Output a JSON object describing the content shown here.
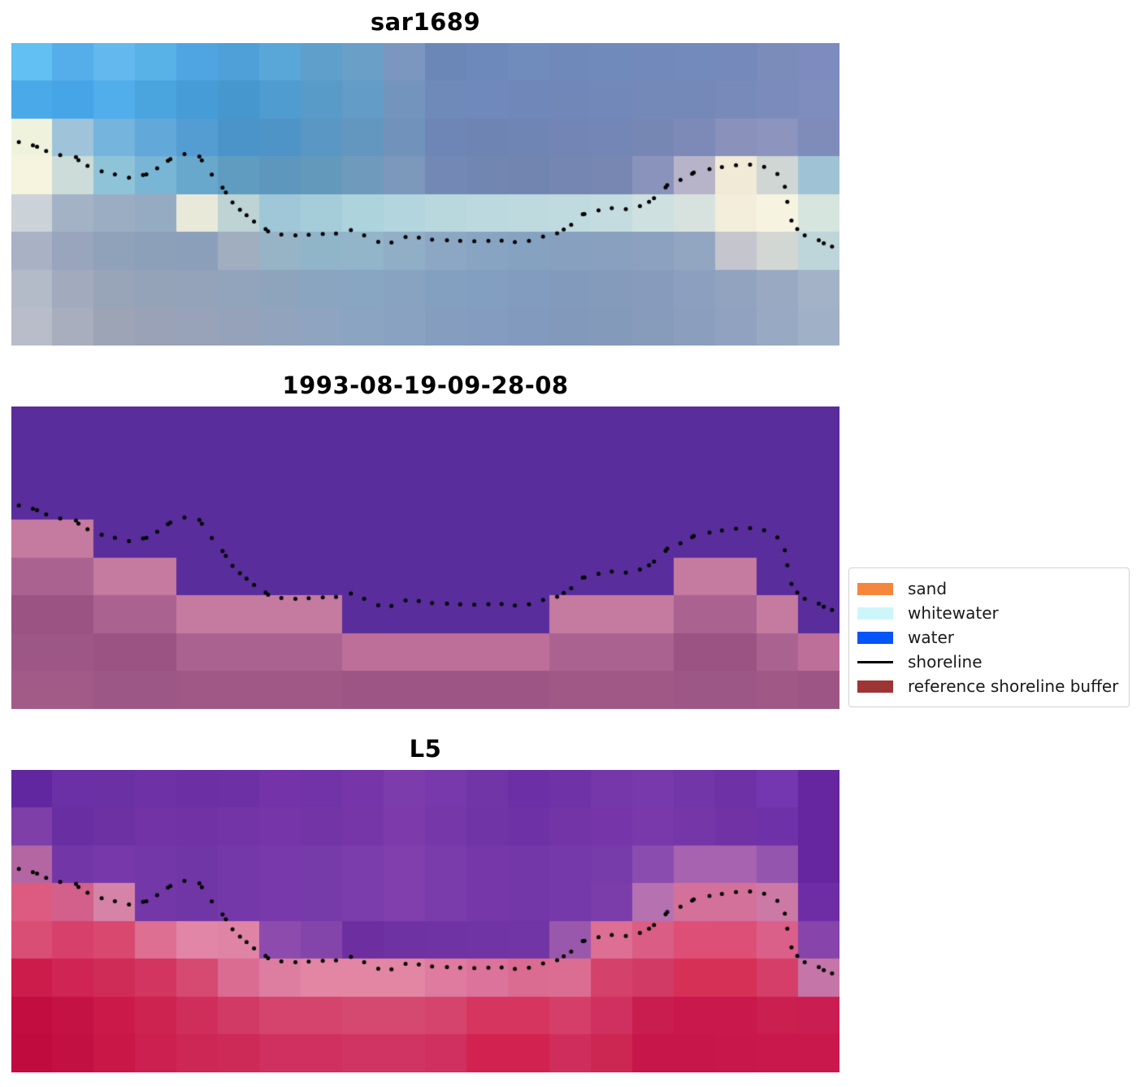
{
  "chart_data": {
    "type": "heatmap",
    "description": "Three stacked satellite image panels (pixelated imagery) sharing a common detected shoreline drawn as dotted black points; legend of classification colors at right.",
    "grid_cols": 20,
    "grid_rows": 8,
    "panels": [
      {
        "title": "sar1689",
        "grid": [
          [
            "#62c0f2",
            "#55aeea",
            "#63b8ee",
            "#58b1e7",
            "#4fa5e1",
            "#4f9fd8",
            "#58a7d8",
            "#5f9fcc",
            "#6a9fc8",
            "#7b97c0",
            "#6b87b8",
            "#6d89bb",
            "#6f8cbd",
            "#7089bb",
            "#718abc",
            "#7289bb",
            "#738abc",
            "#7589ba",
            "#7b8cbb",
            "#7d8bbf"
          ],
          [
            "#4aa9e8",
            "#45a5e6",
            "#51aeeb",
            "#4aa4de",
            "#459cd7",
            "#4697cd",
            "#4f9cd1",
            "#589bc9",
            "#639cc6",
            "#7395bd",
            "#6f8ab9",
            "#7089bc",
            "#6f87b9",
            "#7187b8",
            "#7288b9",
            "#7589b9",
            "#7589b8",
            "#778aba",
            "#7b8cbc",
            "#7e8cbe"
          ],
          [
            "#eff3dd",
            "#9fc4da",
            "#74b4dd",
            "#62a8d8",
            "#549dd2",
            "#4b94c9",
            "#4f94c7",
            "#5a97c4",
            "#6497bf",
            "#7193bb",
            "#6d86b5",
            "#6e85b4",
            "#6f85b3",
            "#7285b4",
            "#7486b5",
            "#7787b4",
            "#7d8ab7",
            "#8a92bb",
            "#8d94bd",
            "#7f8cba"
          ],
          [
            "#f6f4de",
            "#ccdcd8",
            "#8fc3d8",
            "#79b5d4",
            "#68a8cc",
            "#5f9cc0",
            "#5d97bd",
            "#639abc",
            "#6f9abb",
            "#7c98bb",
            "#7388b4",
            "#7286b2",
            "#7285b1",
            "#7586b2",
            "#7787b2",
            "#8a93bb",
            "#b7b4c9",
            "#f1ead6",
            "#cfd6d4",
            "#9fc3d4"
          ],
          [
            "#ccd3d8",
            "#a4b2c6",
            "#9aadc3",
            "#95abc2",
            "#e9e9da",
            "#bdd3d4",
            "#9fc7d8",
            "#a5cdd9",
            "#add3dc",
            "#b2d5de",
            "#b8d8de",
            "#bcd9df",
            "#bedadf",
            "#c0dbe0",
            "#c4dce0",
            "#cfe0e0",
            "#d7e2de",
            "#f3eedc",
            "#f6f3e0",
            "#d6e5de"
          ],
          [
            "#a9b2c4",
            "#98a5bc",
            "#8fa2ba",
            "#8ca0b9",
            "#8b9fba",
            "#a0aec0",
            "#96b4c6",
            "#90b4c8",
            "#92b5ca",
            "#90aec6",
            "#8ba7c3",
            "#87a4c2",
            "#86a2c1",
            "#87a0bf",
            "#89a0bf",
            "#8ca1bf",
            "#92a5c1",
            "#c5c6cd",
            "#d3d7d3",
            "#bed6da"
          ],
          [
            "#b3bac8",
            "#a2abbd",
            "#98a4b8",
            "#95a3b8",
            "#94a3ba",
            "#92a3bc",
            "#8ea4bd",
            "#8aa5c0",
            "#88a5c2",
            "#87a3c1",
            "#84a0c0",
            "#829ec0",
            "#819cbe",
            "#829bbd",
            "#849bbc",
            "#879cbc",
            "#8c9fbe",
            "#92a3c0",
            "#9aa9c2",
            "#a3b2c6"
          ],
          [
            "#b8bdc9",
            "#a8aebd",
            "#9da4b6",
            "#99a2b6",
            "#98a2b8",
            "#96a2ba",
            "#92a3bd",
            "#8ea4c0",
            "#8ba4c2",
            "#89a2c1",
            "#859ec0",
            "#839cbf",
            "#829abd",
            "#8299bc",
            "#849abb",
            "#879bbb",
            "#8b9ebd",
            "#90a2bf",
            "#98a9c3",
            "#a0b0c7"
          ]
        ]
      },
      {
        "title": "1993-08-19-09-28-08",
        "grid": [
          [
            "#5a2d9c",
            "#5a2d9c",
            "#5a2d9c",
            "#5a2d9c",
            "#5a2d9c",
            "#5a2d9c",
            "#5a2d9c",
            "#5a2d9c",
            "#5a2d9c",
            "#5a2d9c",
            "#5a2d9c",
            "#5a2d9c",
            "#5a2d9c",
            "#5a2d9c",
            "#5a2d9c",
            "#5a2d9c",
            "#5a2d9c",
            "#5a2d9c",
            "#5a2d9c",
            "#5a2d9c"
          ],
          [
            "#5a2d9c",
            "#5a2d9c",
            "#5a2d9c",
            "#5a2d9c",
            "#5a2d9c",
            "#5a2d9c",
            "#5a2d9c",
            "#5a2d9c",
            "#5a2d9c",
            "#5a2d9c",
            "#5a2d9c",
            "#5a2d9c",
            "#5a2d9c",
            "#5a2d9c",
            "#5a2d9c",
            "#5a2d9c",
            "#5a2d9c",
            "#5a2d9c",
            "#5a2d9c",
            "#5a2d9c"
          ],
          [
            "#5a2d9c",
            "#5a2d9c",
            "#5a2d9c",
            "#5a2d9c",
            "#5a2d9c",
            "#5a2d9c",
            "#5a2d9c",
            "#5a2d9c",
            "#5a2d9c",
            "#5a2d9c",
            "#5a2d9c",
            "#5a2d9c",
            "#5a2d9c",
            "#5a2d9c",
            "#5a2d9c",
            "#5a2d9c",
            "#5a2d9c",
            "#5a2d9c",
            "#5a2d9c",
            "#5a2d9c"
          ],
          [
            "#c57a9f",
            "#c57a9f",
            "#5a2d9c",
            "#5a2d9c",
            "#5a2d9c",
            "#5a2d9c",
            "#5a2d9c",
            "#5a2d9c",
            "#5a2d9c",
            "#5a2d9c",
            "#5a2d9c",
            "#5a2d9c",
            "#5a2d9c",
            "#5a2d9c",
            "#5a2d9c",
            "#5a2d9c",
            "#5a2d9c",
            "#5a2d9c",
            "#5a2d9c",
            "#5a2d9c"
          ],
          [
            "#aa6390",
            "#aa6390",
            "#c57a9f",
            "#c57a9f",
            "#5a2d9c",
            "#5a2d9c",
            "#5a2d9c",
            "#5a2d9c",
            "#5a2d9c",
            "#5a2d9c",
            "#5a2d9c",
            "#5a2d9c",
            "#5a2d9c",
            "#5a2d9c",
            "#5a2d9c",
            "#5a2d9c",
            "#c57a9f",
            "#c57a9f",
            "#5a2d9c",
            "#5a2d9c"
          ],
          [
            "#9a5383",
            "#9a5383",
            "#aa6390",
            "#aa6390",
            "#c57a9f",
            "#c57a9f",
            "#c57a9f",
            "#c57a9f",
            "#5a2d9c",
            "#5a2d9c",
            "#5a2d9c",
            "#5a2d9c",
            "#5a2d9c",
            "#c57a9f",
            "#c57a9f",
            "#c57a9f",
            "#aa6390",
            "#aa6390",
            "#c57a9f",
            "#5a2d9c"
          ],
          [
            "#9d5786",
            "#9d5786",
            "#9a5383",
            "#9a5383",
            "#aa6390",
            "#aa6390",
            "#aa6390",
            "#aa6390",
            "#bd6f99",
            "#bd6f99",
            "#bd6f99",
            "#bd6f99",
            "#bd6f99",
            "#aa6390",
            "#aa6390",
            "#aa6390",
            "#9a5383",
            "#9a5383",
            "#aa6390",
            "#bd6f99"
          ],
          [
            "#a25a87",
            "#a25a87",
            "#9d5786",
            "#9d5786",
            "#a05886",
            "#a05886",
            "#a05886",
            "#a05886",
            "#9d5585",
            "#9d5585",
            "#9d5585",
            "#9d5585",
            "#9d5585",
            "#a05886",
            "#a05886",
            "#a05886",
            "#9d5786",
            "#9d5786",
            "#a05886",
            "#9d5585"
          ]
        ]
      },
      {
        "title": "L5",
        "grid": [
          [
            "#6127a0",
            "#6b2fa6",
            "#6c30a5",
            "#6e32a6",
            "#6c2fa4",
            "#6e31a5",
            "#7433a8",
            "#7133a7",
            "#7636a9",
            "#7d3cac",
            "#7739ab",
            "#7135a8",
            "#6c2fa5",
            "#7033a7",
            "#7537aa",
            "#7839ac",
            "#7336a9",
            "#6e31a6",
            "#7437af",
            "#6526a0"
          ],
          [
            "#7e3fa9",
            "#6a2ea3",
            "#6e31a4",
            "#7133a6",
            "#7032a5",
            "#7234a6",
            "#7635a8",
            "#7334a6",
            "#7736a8",
            "#7c3aab",
            "#7637a9",
            "#7134a7",
            "#6f32a6",
            "#7234a7",
            "#7636a9",
            "#7a39ab",
            "#7536a8",
            "#7132a6",
            "#6f31a7",
            "#6526a0"
          ],
          [
            "#b466a2",
            "#7336a7",
            "#7739a9",
            "#7437a8",
            "#7136a6",
            "#7438a8",
            "#7839aa",
            "#773aa9",
            "#7c3dac",
            "#803fad",
            "#7b3cab",
            "#7638a9",
            "#7337a8",
            "#7539a9",
            "#783baa",
            "#8b4cb0",
            "#a763af",
            "#a763af",
            "#9355ad",
            "#6526a0"
          ],
          [
            "#dd5b80",
            "#d2608a",
            "#d584a8",
            "#7437a8",
            "#7136a6",
            "#7438a8",
            "#7839aa",
            "#773aa9",
            "#7c3dac",
            "#803fad",
            "#7b3cab",
            "#7638a9",
            "#7337a8",
            "#7539a9",
            "#7b3da9",
            "#b671b1",
            "#d3719a",
            "#d4719b",
            "#cc7aa5",
            "#6e2da4"
          ],
          [
            "#d94e74",
            "#d6406a",
            "#d8486f",
            "#dd6f93",
            "#e186a6",
            "#e084a5",
            "#8d4bae",
            "#8445ab",
            "#6d2fa0",
            "#6f32a2",
            "#7033a3",
            "#7134a4",
            "#7235a5",
            "#9a58ac",
            "#dc6f93",
            "#da5d85",
            "#dd4f76",
            "#dd4f76",
            "#db6089",
            "#8745ac"
          ],
          [
            "#cb1c4c",
            "#cf2454",
            "#d02c58",
            "#d23560",
            "#d64a72",
            "#da6b91",
            "#dd7ea1",
            "#e286a4",
            "#e286a4",
            "#e286a4",
            "#de7b9e",
            "#dc739a",
            "#da6b91",
            "#db6d92",
            "#d4426c",
            "#d23a66",
            "#d63056",
            "#d63056",
            "#d43e68",
            "#c575a8"
          ],
          [
            "#c20d40",
            "#c51245",
            "#cb1a4a",
            "#cd2351",
            "#d02e5a",
            "#d23a66",
            "#d4446c",
            "#d4446c",
            "#d54970",
            "#d54970",
            "#d4446c",
            "#d63560",
            "#d63560",
            "#d43e68",
            "#cf3060",
            "#ca1d4f",
            "#c9184c",
            "#c9184c",
            "#cb1f50",
            "#ca1d51"
          ],
          [
            "#c00b3e",
            "#c31043",
            "#c91747",
            "#cb2050",
            "#cd2855",
            "#cd2a58",
            "#cf3060",
            "#cf3060",
            "#d03463",
            "#d03463",
            "#cf3060",
            "#d12250",
            "#d12250",
            "#cf2e5c",
            "#cc2753",
            "#c6164a",
            "#c6164a",
            "#c7174b",
            "#c8184c",
            "#c8184c"
          ]
        ]
      }
    ],
    "shoreline": {
      "color": "#000000",
      "dot_radius": 2.5,
      "points": [
        [
          0.009,
          0.327
        ],
        [
          0.026,
          0.338
        ],
        [
          0.031,
          0.343
        ],
        [
          0.042,
          0.357
        ],
        [
          0.059,
          0.37
        ],
        [
          0.078,
          0.377
        ],
        [
          0.081,
          0.387
        ],
        [
          0.092,
          0.406
        ],
        [
          0.109,
          0.424
        ],
        [
          0.125,
          0.434
        ],
        [
          0.142,
          0.445
        ],
        [
          0.159,
          0.436
        ],
        [
          0.163,
          0.434
        ],
        [
          0.176,
          0.414
        ],
        [
          0.189,
          0.389
        ],
        [
          0.192,
          0.384
        ],
        [
          0.209,
          0.367
        ],
        [
          0.227,
          0.375
        ],
        [
          0.23,
          0.388
        ],
        [
          0.242,
          0.435
        ],
        [
          0.255,
          0.478
        ],
        [
          0.259,
          0.494
        ],
        [
          0.267,
          0.527
        ],
        [
          0.276,
          0.551
        ],
        [
          0.284,
          0.569
        ],
        [
          0.293,
          0.59
        ],
        [
          0.307,
          0.615
        ],
        [
          0.31,
          0.622
        ],
        [
          0.326,
          0.633
        ],
        [
          0.343,
          0.636
        ],
        [
          0.359,
          0.634
        ],
        [
          0.376,
          0.631
        ],
        [
          0.392,
          0.63
        ],
        [
          0.41,
          0.618
        ],
        [
          0.426,
          0.636
        ],
        [
          0.443,
          0.657
        ],
        [
          0.459,
          0.659
        ],
        [
          0.476,
          0.641
        ],
        [
          0.492,
          0.643
        ],
        [
          0.508,
          0.65
        ],
        [
          0.526,
          0.652
        ],
        [
          0.542,
          0.654
        ],
        [
          0.559,
          0.655
        ],
        [
          0.576,
          0.654
        ],
        [
          0.592,
          0.653
        ],
        [
          0.608,
          0.658
        ],
        [
          0.625,
          0.654
        ],
        [
          0.642,
          0.64
        ],
        [
          0.659,
          0.629
        ],
        [
          0.667,
          0.616
        ],
        [
          0.676,
          0.601
        ],
        [
          0.69,
          0.566
        ],
        [
          0.692,
          0.565
        ],
        [
          0.709,
          0.553
        ],
        [
          0.725,
          0.546
        ],
        [
          0.742,
          0.549
        ],
        [
          0.759,
          0.539
        ],
        [
          0.77,
          0.525
        ],
        [
          0.776,
          0.513
        ],
        [
          0.79,
          0.477
        ],
        [
          0.792,
          0.47
        ],
        [
          0.808,
          0.452
        ],
        [
          0.822,
          0.432
        ],
        [
          0.824,
          0.428
        ],
        [
          0.843,
          0.417
        ],
        [
          0.858,
          0.41
        ],
        [
          0.875,
          0.404
        ],
        [
          0.892,
          0.402
        ],
        [
          0.909,
          0.409
        ],
        [
          0.925,
          0.433
        ],
        [
          0.934,
          0.475
        ],
        [
          0.937,
          0.525
        ],
        [
          0.942,
          0.587
        ],
        [
          0.949,
          0.615
        ],
        [
          0.958,
          0.636
        ],
        [
          0.975,
          0.652
        ],
        [
          0.981,
          0.662
        ],
        [
          0.991,
          0.673
        ]
      ]
    },
    "legend": {
      "items": [
        {
          "label": "sand",
          "type": "patch",
          "color": "#f5863c"
        },
        {
          "label": "whitewater",
          "type": "patch",
          "color": "#cdf6fa"
        },
        {
          "label": "water",
          "type": "patch",
          "color": "#0455f9"
        },
        {
          "label": "shoreline",
          "type": "line",
          "color": "#000000"
        },
        {
          "label": "reference shoreline buffer",
          "type": "patch",
          "color": "#9e3535"
        }
      ]
    }
  }
}
